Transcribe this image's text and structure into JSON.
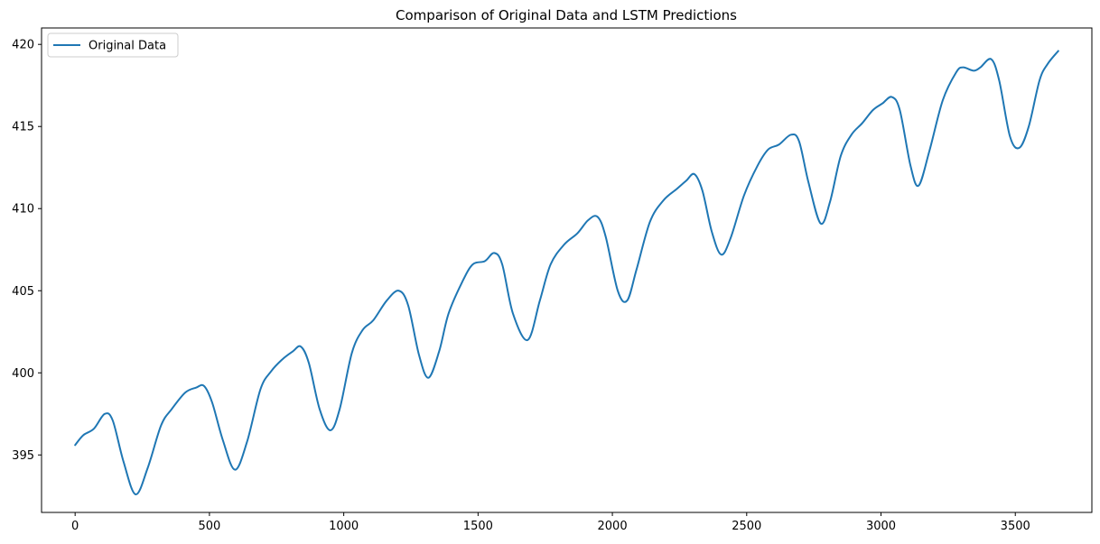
{
  "chart_data": {
    "type": "line",
    "title": "Comparison of Original Data and LSTM Predictions",
    "xlabel": "",
    "ylabel": "",
    "xlim": [
      -125,
      3785
    ],
    "ylim": [
      391.5,
      421.0
    ],
    "x_ticks": [
      0,
      500,
      1000,
      1500,
      2000,
      2500,
      3000,
      3500
    ],
    "y_ticks": [
      395,
      400,
      405,
      410,
      415,
      420
    ],
    "grid": false,
    "legend_position": "top-left",
    "series": [
      {
        "name": "Original Data",
        "color": "#1f77b4",
        "points": [
          [
            0,
            395.6
          ],
          [
            30,
            396.2
          ],
          [
            70,
            396.6
          ],
          [
            110,
            397.5
          ],
          [
            140,
            397.1
          ],
          [
            180,
            394.6
          ],
          [
            225,
            392.6
          ],
          [
            270,
            394.2
          ],
          [
            320,
            396.8
          ],
          [
            360,
            397.8
          ],
          [
            410,
            398.8
          ],
          [
            450,
            399.1
          ],
          [
            480,
            399.2
          ],
          [
            510,
            398.2
          ],
          [
            550,
            395.9
          ],
          [
            595,
            394.1
          ],
          [
            640,
            395.8
          ],
          [
            690,
            399.0
          ],
          [
            730,
            400.1
          ],
          [
            770,
            400.8
          ],
          [
            810,
            401.3
          ],
          [
            840,
            401.6
          ],
          [
            870,
            400.6
          ],
          [
            910,
            397.8
          ],
          [
            950,
            396.5
          ],
          [
            985,
            397.8
          ],
          [
            1030,
            401.2
          ],
          [
            1070,
            402.6
          ],
          [
            1110,
            403.2
          ],
          [
            1160,
            404.4
          ],
          [
            1205,
            405.0
          ],
          [
            1240,
            404.1
          ],
          [
            1280,
            401.1
          ],
          [
            1315,
            399.7
          ],
          [
            1355,
            401.3
          ],
          [
            1390,
            403.6
          ],
          [
            1440,
            405.5
          ],
          [
            1480,
            406.6
          ],
          [
            1525,
            406.8
          ],
          [
            1560,
            407.3
          ],
          [
            1590,
            406.6
          ],
          [
            1630,
            403.6
          ],
          [
            1685,
            402.0
          ],
          [
            1730,
            404.4
          ],
          [
            1770,
            406.6
          ],
          [
            1820,
            407.8
          ],
          [
            1870,
            408.5
          ],
          [
            1910,
            409.3
          ],
          [
            1945,
            409.5
          ],
          [
            1975,
            408.3
          ],
          [
            2020,
            405.0
          ],
          [
            2055,
            404.4
          ],
          [
            2090,
            406.3
          ],
          [
            2140,
            409.2
          ],
          [
            2190,
            410.5
          ],
          [
            2240,
            411.2
          ],
          [
            2275,
            411.7
          ],
          [
            2305,
            412.1
          ],
          [
            2335,
            411.1
          ],
          [
            2370,
            408.6
          ],
          [
            2405,
            407.2
          ],
          [
            2440,
            408.2
          ],
          [
            2490,
            410.8
          ],
          [
            2540,
            412.6
          ],
          [
            2580,
            413.6
          ],
          [
            2620,
            413.9
          ],
          [
            2665,
            414.5
          ],
          [
            2695,
            414.1
          ],
          [
            2730,
            411.6
          ],
          [
            2775,
            409.1
          ],
          [
            2810,
            410.4
          ],
          [
            2850,
            413.2
          ],
          [
            2890,
            414.5
          ],
          [
            2930,
            415.2
          ],
          [
            2970,
            416.0
          ],
          [
            3005,
            416.4
          ],
          [
            3040,
            416.8
          ],
          [
            3070,
            416.0
          ],
          [
            3110,
            412.6
          ],
          [
            3140,
            411.4
          ],
          [
            3180,
            413.5
          ],
          [
            3230,
            416.6
          ],
          [
            3280,
            418.3
          ],
          [
            3305,
            418.6
          ],
          [
            3345,
            418.4
          ],
          [
            3370,
            418.6
          ],
          [
            3410,
            419.1
          ],
          [
            3440,
            417.8
          ],
          [
            3480,
            414.4
          ],
          [
            3515,
            413.7
          ],
          [
            3550,
            415.0
          ],
          [
            3590,
            417.8
          ],
          [
            3620,
            418.8
          ],
          [
            3660,
            419.6
          ]
        ]
      }
    ]
  }
}
